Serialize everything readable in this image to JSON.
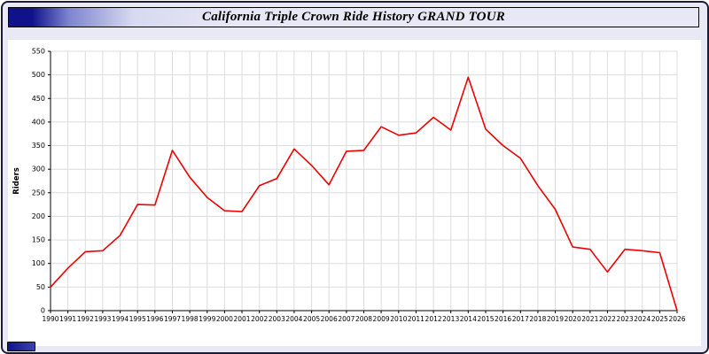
{
  "window": {
    "title": "California Triple Crown Ride History GRAND TOUR"
  },
  "colors": {
    "panel_background": "#e9e9f6",
    "titlebar_navy": "#10128c",
    "line": "#ee0000",
    "grid": "#dcdcdc",
    "axis": "#000000"
  },
  "chart_data": {
    "type": "line",
    "title": "California Triple Crown Ride History GRAND TOUR",
    "xlabel": "",
    "ylabel": "Riders",
    "ylim": [
      0,
      550
    ],
    "ytick_step": 50,
    "grid": true,
    "legend_position": "none",
    "line_color": "#ee0000",
    "series_name": "Riders",
    "categories": [
      "1990",
      "1991",
      "1992",
      "1993",
      "1994",
      "1995",
      "1996",
      "1997",
      "1998",
      "1999",
      "2000",
      "2001",
      "2002",
      "2003",
      "2004",
      "2005",
      "2006",
      "2007",
      "2008",
      "2009",
      "2010",
      "2011",
      "2012",
      "2013",
      "2014",
      "2015",
      "2016",
      "2017",
      "2018",
      "2019",
      "2020",
      "2021",
      "2022",
      "2023",
      "2024",
      "2025",
      "2026"
    ],
    "values": [
      50,
      90,
      125,
      127,
      160,
      225,
      224,
      340,
      283,
      240,
      212,
      210,
      265,
      280,
      343,
      308,
      267,
      338,
      340,
      390,
      372,
      377,
      410,
      383,
      495,
      385,
      350,
      323,
      265,
      215,
      135,
      130,
      82,
      130,
      127,
      123,
      0
    ]
  }
}
